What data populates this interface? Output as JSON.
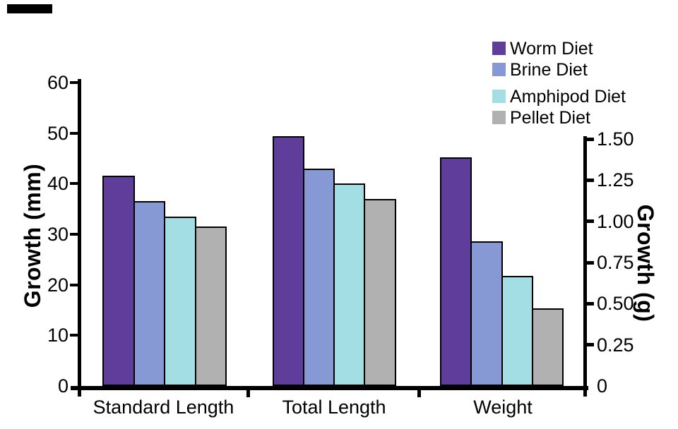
{
  "chart_data": {
    "type": "bar",
    "title": "",
    "categories": [
      "Standard Length",
      "Total Length",
      "Weight"
    ],
    "series": [
      {
        "name": "Worm Diet",
        "color": "#5f3e9b",
        "values": [
          41.5,
          49.4,
          1.39
        ]
      },
      {
        "name": "Brine Diet",
        "color": "#8799d4",
        "values": [
          36.5,
          43.0,
          0.88
        ]
      },
      {
        "name": "Amphipod Diet",
        "color": "#a2dee3",
        "values": [
          33.5,
          40.0,
          0.67
        ]
      },
      {
        "name": "Pellet Diet",
        "color": "#b1b1b1",
        "values": [
          31.5,
          37.0,
          0.47
        ]
      }
    ],
    "left_axis": {
      "label": "Growth (mm)",
      "ticks": [
        "0",
        "10",
        "20",
        "30",
        "40",
        "50",
        "60"
      ],
      "range": [
        0,
        60
      ],
      "applies_to": [
        "Standard Length",
        "Total Length"
      ]
    },
    "right_axis": {
      "label": "Growth (g)",
      "ticks": [
        "0",
        "0.25",
        "0.50",
        "0.75",
        "1.00",
        "1.25",
        "1.50"
      ],
      "range": [
        0,
        1.5
      ],
      "applies_to": [
        "Weight"
      ]
    },
    "legend": {
      "position": "top-right",
      "entries": [
        "Worm Diet",
        "Brine Diet",
        "Amphipod Diet",
        "Pellet Diet"
      ]
    },
    "grid": false,
    "background_color": "#ffffff",
    "axis_color": "#000000",
    "bar_outline_color": "#000000"
  }
}
